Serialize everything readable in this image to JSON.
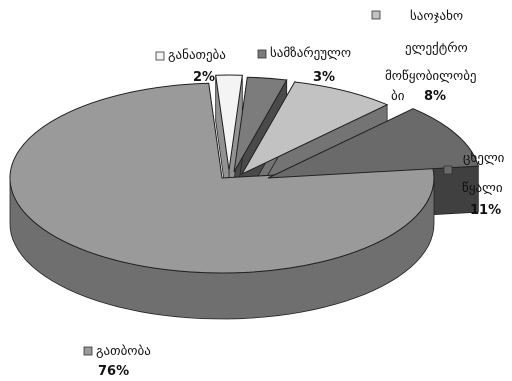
{
  "chart_data": {
    "type": "pie",
    "title": "",
    "three_d": true,
    "slices": [
      {
        "key": "heating",
        "label_lines": [
          "გათბობა"
        ],
        "value": 76,
        "value_label": "76%",
        "color": "#9a9a9a"
      },
      {
        "key": "lighting",
        "label_lines": [
          "განათება"
        ],
        "value": 2,
        "value_label": "2%",
        "color": "#f4f4f4"
      },
      {
        "key": "cooking",
        "label_lines": [
          "სამზარეულო"
        ],
        "value": 3,
        "value_label": "3%",
        "color": "#7c7c7c"
      },
      {
        "key": "appliances",
        "label_lines": [
          "საოჯახო",
          "ელექტრო",
          "მოწყობილობე",
          "ბი"
        ],
        "value": 8,
        "value_label": "8%",
        "color": "#c2c2c2"
      },
      {
        "key": "hot_water",
        "label_lines": [
          "ცხელი",
          "წყალი"
        ],
        "value": 11,
        "value_label": "11%",
        "color": "#6a6a6a"
      }
    ]
  }
}
